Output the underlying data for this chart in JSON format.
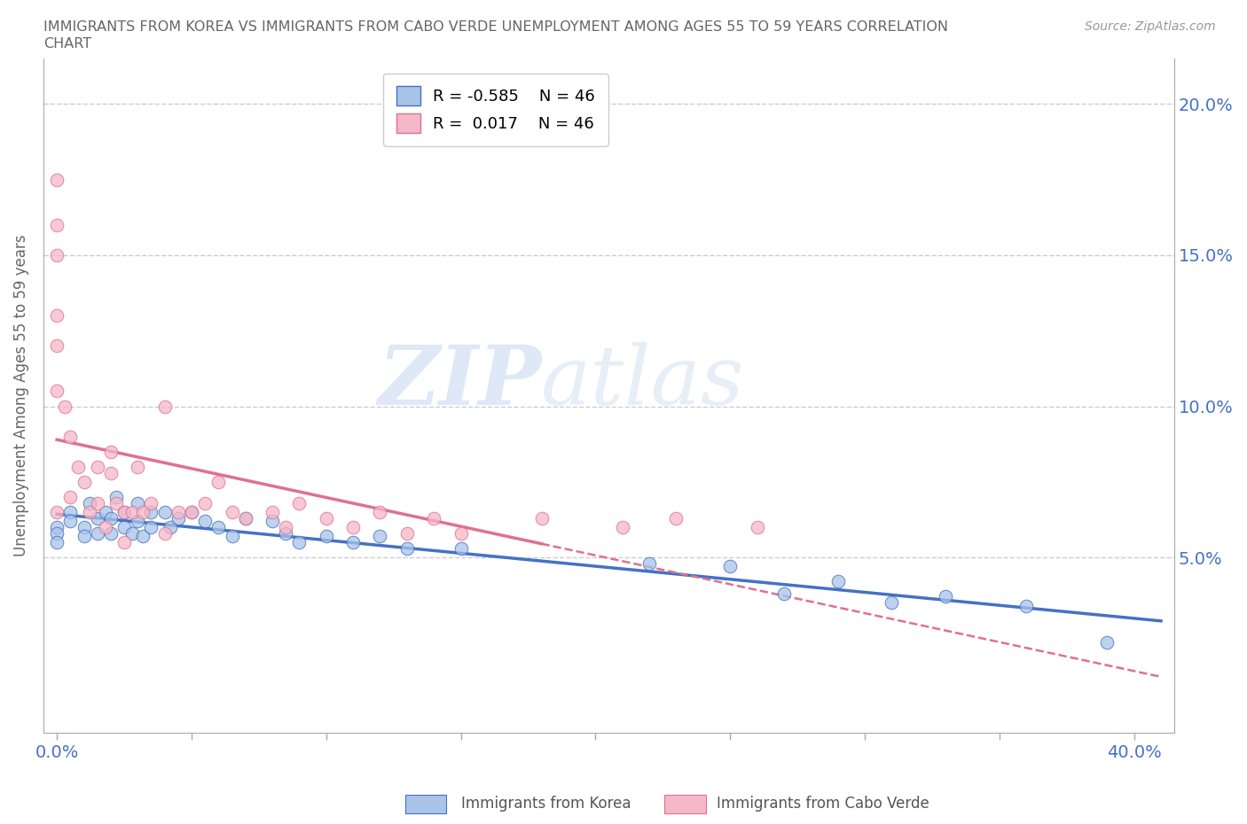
{
  "title_line1": "IMMIGRANTS FROM KOREA VS IMMIGRANTS FROM CABO VERDE UNEMPLOYMENT AMONG AGES 55 TO 59 YEARS CORRELATION",
  "title_line2": "CHART",
  "source": "Source: ZipAtlas.com",
  "yaxis_label": "Unemployment Among Ages 55 to 59 years",
  "xlim": [
    -0.005,
    0.415
  ],
  "ylim": [
    -0.008,
    0.215
  ],
  "korea_color": "#a8c4e8",
  "caboverde_color": "#f5b8c8",
  "korea_trendline_color": "#4472c4",
  "caboverde_trendline_color": "#e07090",
  "watermark_zip": "ZIP",
  "watermark_atlas": "atlas",
  "legend_korea_r": "-0.585",
  "legend_korea_n": "46",
  "legend_caboverde_r": "0.017",
  "legend_caboverde_n": "46",
  "korea_x": [
    0.0,
    0.0,
    0.0,
    0.005,
    0.005,
    0.01,
    0.01,
    0.012,
    0.015,
    0.015,
    0.018,
    0.02,
    0.02,
    0.022,
    0.025,
    0.025,
    0.028,
    0.03,
    0.03,
    0.032,
    0.035,
    0.035,
    0.04,
    0.042,
    0.045,
    0.05,
    0.055,
    0.06,
    0.065,
    0.07,
    0.08,
    0.085,
    0.09,
    0.1,
    0.11,
    0.12,
    0.13,
    0.15,
    0.22,
    0.25,
    0.27,
    0.29,
    0.31,
    0.33,
    0.36,
    0.39
  ],
  "korea_y": [
    0.06,
    0.058,
    0.055,
    0.065,
    0.062,
    0.06,
    0.057,
    0.068,
    0.063,
    0.058,
    0.065,
    0.063,
    0.058,
    0.07,
    0.065,
    0.06,
    0.058,
    0.068,
    0.062,
    0.057,
    0.065,
    0.06,
    0.065,
    0.06,
    0.063,
    0.065,
    0.062,
    0.06,
    0.057,
    0.063,
    0.062,
    0.058,
    0.055,
    0.057,
    0.055,
    0.057,
    0.053,
    0.053,
    0.048,
    0.047,
    0.038,
    0.042,
    0.035,
    0.037,
    0.034,
    0.022
  ],
  "caboverde_x": [
    0.0,
    0.0,
    0.0,
    0.0,
    0.0,
    0.0,
    0.0,
    0.003,
    0.005,
    0.005,
    0.008,
    0.01,
    0.012,
    0.015,
    0.015,
    0.018,
    0.02,
    0.02,
    0.022,
    0.025,
    0.025,
    0.028,
    0.03,
    0.032,
    0.035,
    0.04,
    0.04,
    0.045,
    0.05,
    0.055,
    0.06,
    0.065,
    0.07,
    0.08,
    0.085,
    0.09,
    0.1,
    0.11,
    0.12,
    0.13,
    0.14,
    0.15,
    0.18,
    0.21,
    0.23,
    0.26
  ],
  "caboverde_y": [
    0.175,
    0.16,
    0.15,
    0.13,
    0.12,
    0.105,
    0.065,
    0.1,
    0.09,
    0.07,
    0.08,
    0.075,
    0.065,
    0.08,
    0.068,
    0.06,
    0.085,
    0.078,
    0.068,
    0.065,
    0.055,
    0.065,
    0.08,
    0.065,
    0.068,
    0.1,
    0.058,
    0.065,
    0.065,
    0.068,
    0.075,
    0.065,
    0.063,
    0.065,
    0.06,
    0.068,
    0.063,
    0.06,
    0.065,
    0.058,
    0.063,
    0.058,
    0.063,
    0.06,
    0.063,
    0.06
  ],
  "grid_color": "#cccccc",
  "background_color": "#ffffff",
  "title_color": "#666666",
  "axis_label_color": "#4472c4",
  "ylabel_color": "#666666"
}
